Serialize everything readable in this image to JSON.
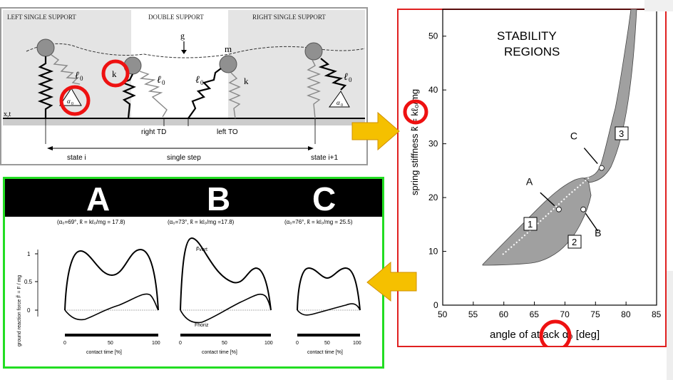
{
  "model_panel": {
    "phases": [
      "LEFT SINGLE SUPPORT",
      "DOUBLE SUPPORT",
      "RIGHT SINGLE SUPPORT"
    ],
    "gravity_label": "g",
    "mass_label": "m",
    "stiffness_label": "k",
    "leg_length_label": "ℓ",
    "leg_length_subscript": "0",
    "angle_label": "α",
    "angle_subscript": "0",
    "axis_label": "x,t",
    "events": [
      "right TD",
      "left TO"
    ],
    "states": [
      "state i",
      "single step",
      "state i+1"
    ],
    "border_color": "#9a9a9a"
  },
  "force_panel": {
    "letters": [
      "A",
      "B",
      "C"
    ],
    "params": [
      "(α₀=69°, k̃ = kℓ₀/mg = 17.8)",
      "(α₀=73°, k̃ = kℓ₀/mg =17.8)",
      "(α₀=76°, k̃ = kℓ₀/mg = 25.5)"
    ],
    "ylabel": "ground reaction force F̃ = F / mg",
    "yticks": [
      "1",
      "0.5",
      "0"
    ],
    "xticks": [
      "0",
      "50",
      "100"
    ],
    "xlabel": "contact time [%]",
    "curve_labels": [
      "F̃vert",
      "F̃horiz"
    ],
    "border_color": "#22dd22",
    "header_color": "#000000"
  },
  "stability_panel": {
    "title_line1": "STABILITY",
    "title_line2": "REGIONS",
    "xlabel": "angle of attack α₀ [deg]",
    "ylabel": "spring stiffness k̃ = kℓ₀/mg",
    "region_labels": [
      "1",
      "2",
      "3"
    ],
    "points": [
      "A",
      "B",
      "C"
    ],
    "border_color": "#e02020",
    "region_color": "#a0a0a0"
  },
  "arrows": {
    "color": "#f5c000"
  },
  "highlight_circle_color": "#ee1111",
  "chart_data": {
    "type": "scatter",
    "xlabel": "angle of attack α₀ [deg]",
    "ylabel": "spring stiffness k̃ = kℓ₀/mg",
    "xlim": [
      50,
      85
    ],
    "ylim": [
      0,
      55
    ],
    "xticks": [
      50,
      55,
      60,
      65,
      70,
      75,
      80,
      85
    ],
    "yticks": [
      0,
      10,
      20,
      30,
      40,
      50
    ],
    "series": [
      {
        "name": "A",
        "x": [
          69
        ],
        "y": [
          17.8
        ]
      },
      {
        "name": "B",
        "x": [
          73
        ],
        "y": [
          17.8
        ]
      },
      {
        "name": "C",
        "x": [
          76
        ],
        "y": [
          25.5
        ]
      }
    ]
  }
}
